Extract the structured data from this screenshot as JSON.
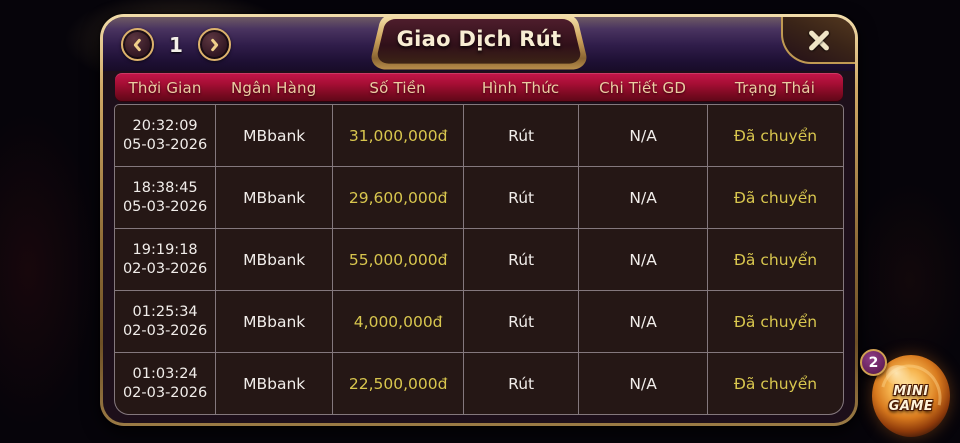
{
  "window": {
    "title": "Giao Dịch Rút",
    "pagination": {
      "current_page": "1"
    }
  },
  "table": {
    "columns": [
      "Thời Gian",
      "Ngân Hàng",
      "Số Tiền",
      "Hình Thức",
      "Chi Tiết GD",
      "Trạng Thái"
    ],
    "rows": [
      {
        "time": "20:32:09",
        "date": "05-03-2026",
        "bank": "MBbank",
        "amount": "31,000,000đ",
        "type": "Rút",
        "detail": "N/A",
        "status": "Đã chuyển"
      },
      {
        "time": "18:38:45",
        "date": "05-03-2026",
        "bank": "MBbank",
        "amount": "29,600,000đ",
        "type": "Rút",
        "detail": "N/A",
        "status": "Đã chuyển"
      },
      {
        "time": "19:19:18",
        "date": "02-03-2026",
        "bank": "MBbank",
        "amount": "55,000,000đ",
        "type": "Rút",
        "detail": "N/A",
        "status": "Đã chuyển"
      },
      {
        "time": "01:25:34",
        "date": "02-03-2026",
        "bank": "MBbank",
        "amount": "4,000,000đ",
        "type": "Rút",
        "detail": "N/A",
        "status": "Đã chuyển"
      },
      {
        "time": "01:03:24",
        "date": "02-03-2026",
        "bank": "MBbank",
        "amount": "22,500,000đ",
        "type": "Rút",
        "detail": "N/A",
        "status": "Đã chuyển"
      }
    ]
  },
  "minigame": {
    "badge_count": "2",
    "label_line1": "MINI",
    "label_line2": "GAME"
  },
  "colors": {
    "accent_gold": "#d4a85c",
    "header_red": "#a50e34",
    "value_yellow": "#d8c64e",
    "badge_purple": "#6b2460",
    "panel_bg": "#251715"
  }
}
